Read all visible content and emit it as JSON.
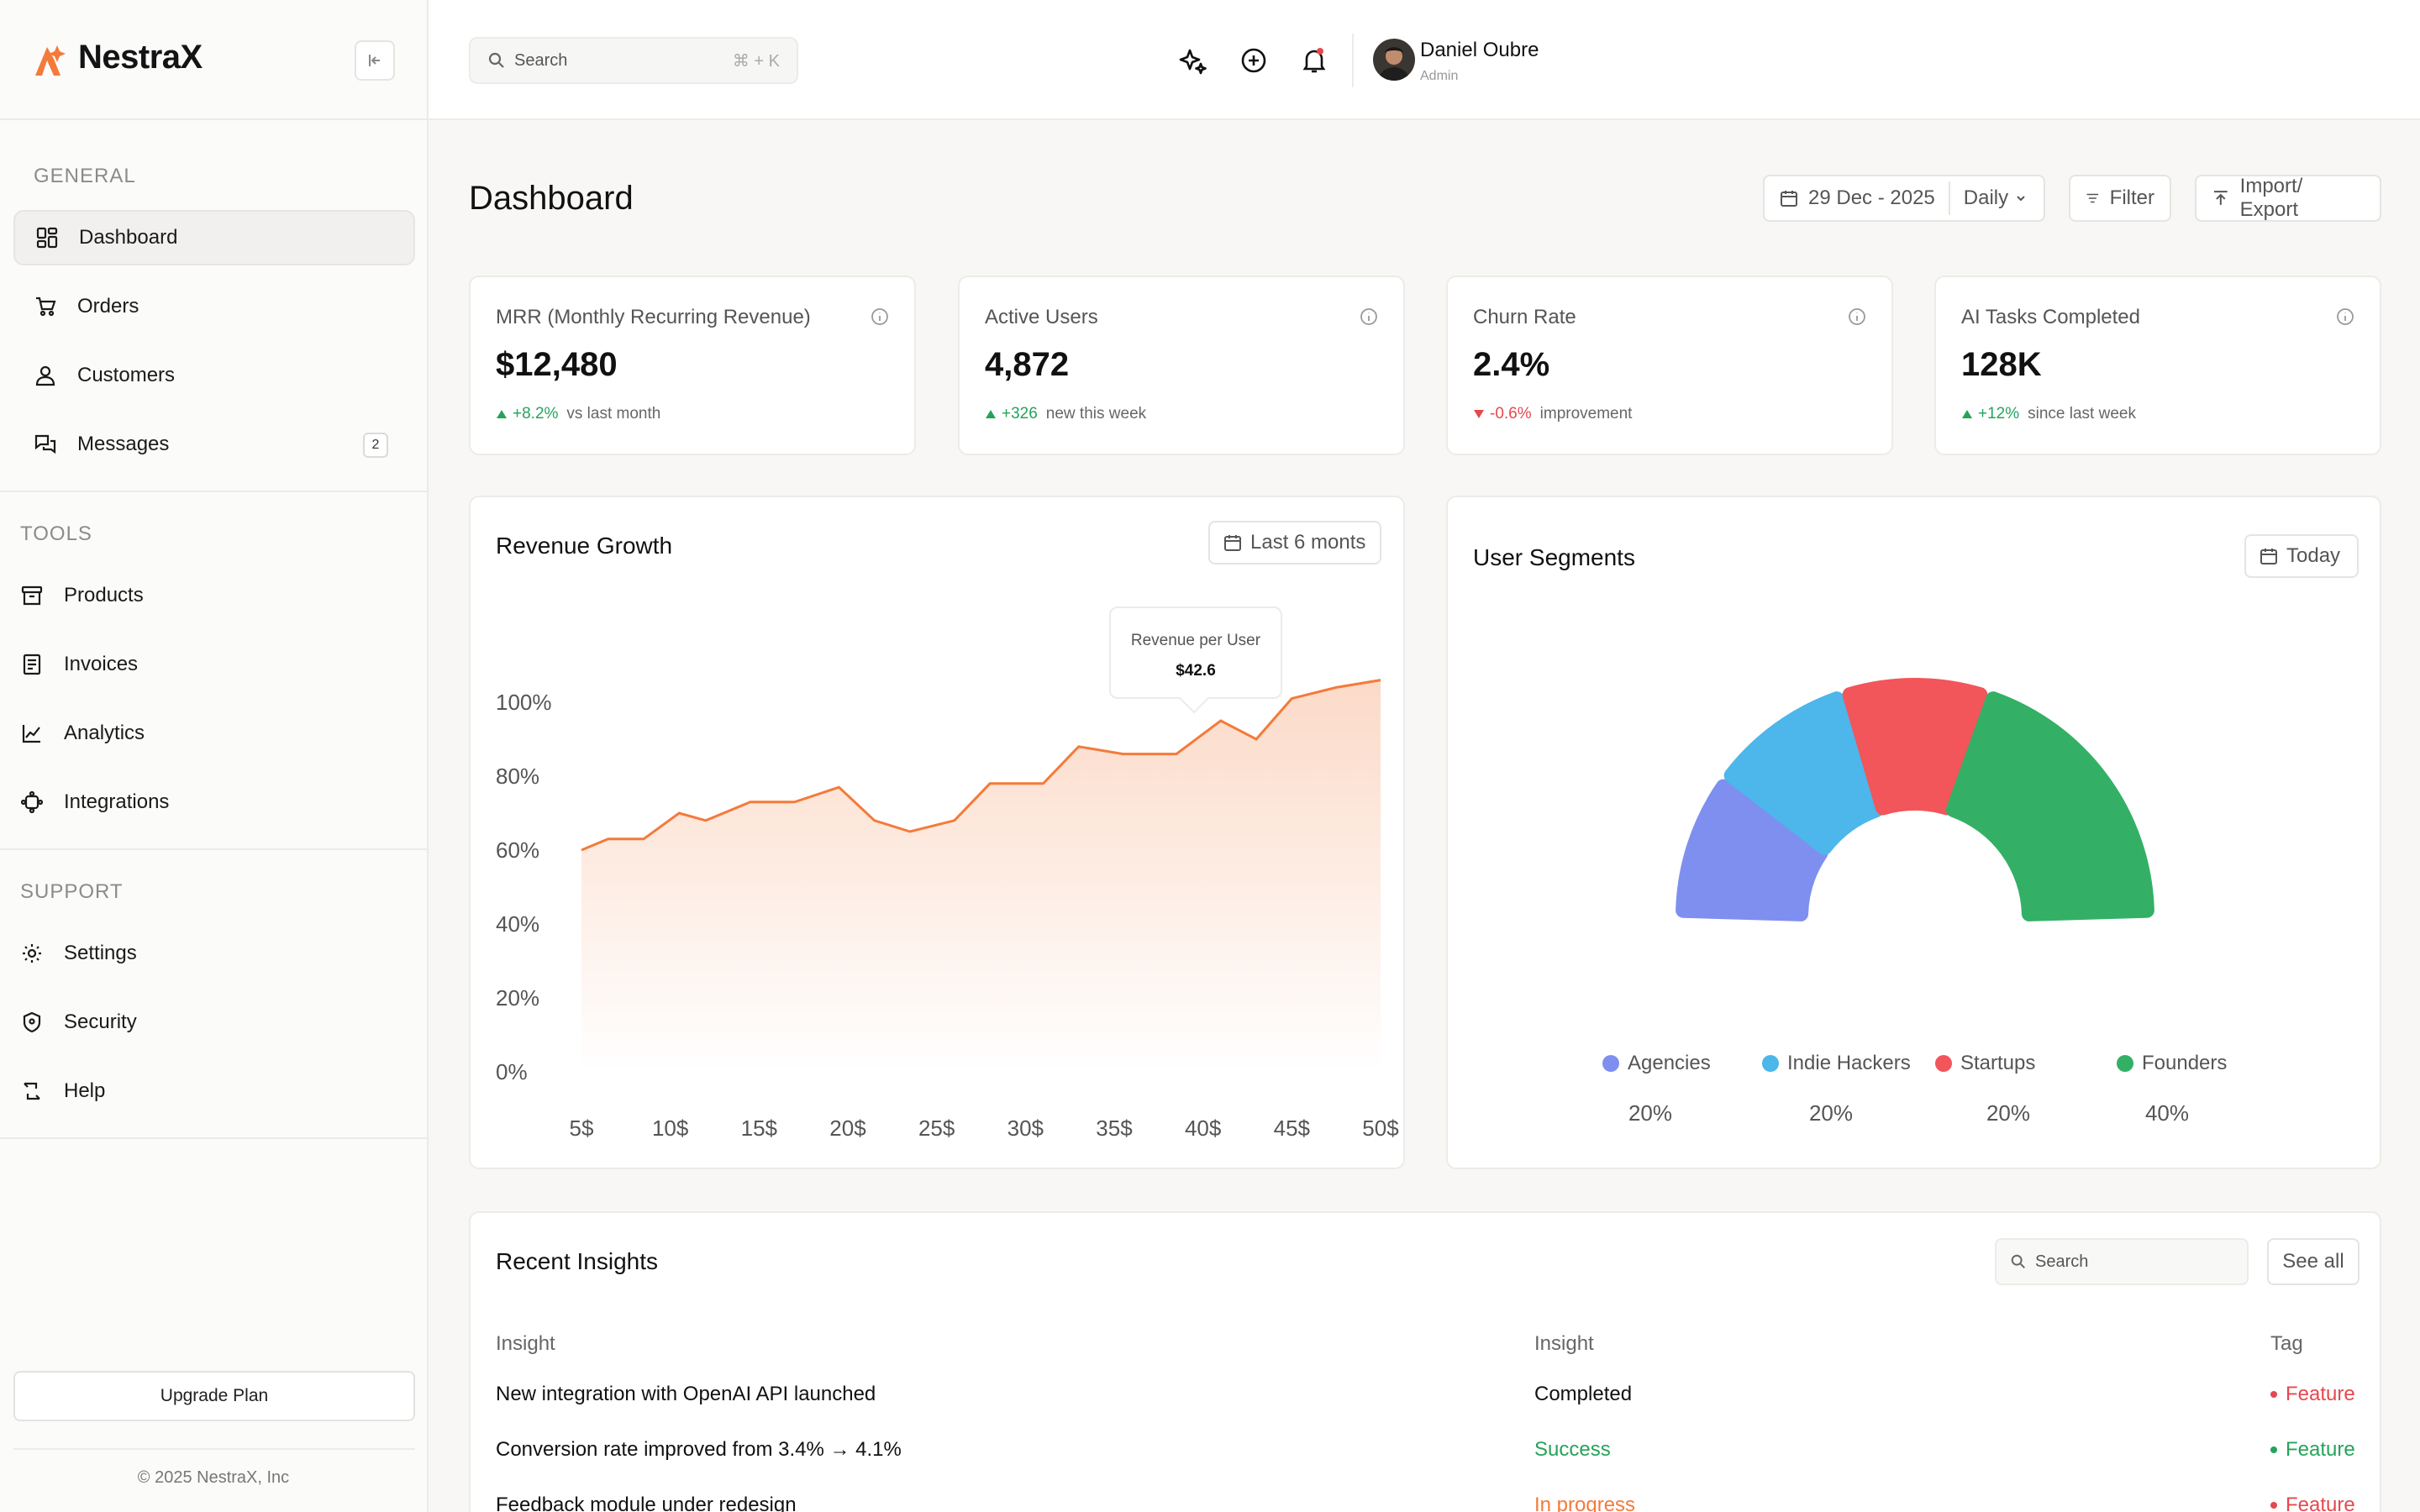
{
  "brand": {
    "name": "NestraX",
    "accent": "#f47a3a"
  },
  "sidebar": {
    "general_label": "GENERAL",
    "tools_label": "TOOLS",
    "support_label": "SUPPORT",
    "general": [
      {
        "label": "Dashboard",
        "icon": "dashboard-grid-icon",
        "active": true
      },
      {
        "label": "Orders",
        "icon": "cart-icon"
      },
      {
        "label": "Customers",
        "icon": "user-icon"
      },
      {
        "label": "Messages",
        "icon": "chat-icon",
        "badge": "2"
      }
    ],
    "tools": [
      {
        "label": "Products",
        "icon": "box-icon"
      },
      {
        "label": "Invoices",
        "icon": "invoice-icon"
      },
      {
        "label": "Analytics",
        "icon": "analytics-chart-icon"
      },
      {
        "label": "Integrations",
        "icon": "integrations-icon"
      }
    ],
    "support": [
      {
        "label": "Settings",
        "icon": "gear-icon"
      },
      {
        "label": "Security",
        "icon": "shield-icon"
      },
      {
        "label": "Help",
        "icon": "help-icon"
      }
    ],
    "upgrade_label": "Upgrade Plan",
    "copyright": "© 2025 NestraX, Inc"
  },
  "topbar": {
    "search_placeholder": "Search",
    "search_shortcut": "⌘ + K",
    "user_name": "Daniel Oubre",
    "user_role": "Admin"
  },
  "page": {
    "title": "Dashboard",
    "date_label": "29 Dec - 2025",
    "period_label": "Daily",
    "filter_label": "Filter",
    "import_export_label": "Import/ Export"
  },
  "kpis": [
    {
      "label": "MRR (Monthly Recurring Revenue)",
      "value": "$12,480",
      "delta": "+8.2%",
      "note": "vs last month",
      "trend": "up"
    },
    {
      "label": "Active Users",
      "value": "4,872",
      "delta": "+326",
      "note": "new this week",
      "trend": "up"
    },
    {
      "label": "Churn Rate",
      "value": "2.4%",
      "delta": "-0.6%",
      "note": "improvement",
      "trend": "down"
    },
    {
      "label": "AI Tasks Completed",
      "value": "128K",
      "delta": "+12%",
      "note": "since last week",
      "trend": "up"
    }
  ],
  "revenue": {
    "title": "Revenue Growth",
    "range_label": "Last 6 monts",
    "tooltip_label": "Revenue per User",
    "tooltip_value": "$42.6"
  },
  "segments": {
    "title": "User Segments",
    "range_label": "Today"
  },
  "chart_data": [
    {
      "type": "area",
      "title": "Revenue Growth",
      "x_ticks": [
        "5$",
        "10$",
        "15$",
        "20$",
        "25$",
        "30$",
        "35$",
        "40$",
        "45$",
        "50$"
      ],
      "y_ticks": [
        "100%",
        "80%",
        "60%",
        "40%",
        "20%",
        "0%"
      ],
      "ylim": [
        0,
        100
      ],
      "xlim": [
        5,
        50
      ],
      "x": [
        5,
        6.5,
        8.5,
        10.5,
        12,
        14.5,
        17,
        19.5,
        21.5,
        23.5,
        26,
        28,
        31,
        33,
        35.5,
        38.5,
        41,
        43,
        45,
        47.5,
        50
      ],
      "y": [
        60,
        63,
        63,
        70,
        68,
        73,
        73,
        77,
        68,
        65,
        68,
        78,
        78,
        88,
        86,
        86,
        95,
        90,
        101,
        104,
        106
      ],
      "grid": false,
      "color": "#f47a3a"
    },
    {
      "type": "pie",
      "title": "User Segments",
      "categories": [
        "Agencies",
        "Indie Hackers",
        "Startups",
        "Founders"
      ],
      "values": [
        20,
        20,
        20,
        40
      ],
      "labels": [
        "20%",
        "20%",
        "20%",
        "40%"
      ],
      "colors": [
        "#7f8ff0",
        "#4db6ea",
        "#f2555a",
        "#33b066"
      ],
      "legend": "bottom"
    }
  ],
  "insights": {
    "title": "Recent Insights",
    "search_placeholder": "Search",
    "see_all": "See all",
    "columns": [
      "Insight",
      "Insight",
      "Tag"
    ],
    "rows": [
      {
        "insight": "New integration with OpenAI API launched",
        "status": "Completed",
        "status_color": "#111111",
        "tag": "Feature",
        "tag_color": "#e5484d"
      },
      {
        "insight": "Conversion rate improved from 3.4% → 4.1%",
        "status": "Success",
        "status_color": "#25a35a",
        "tag": "Feature",
        "tag_color": "#25a35a"
      },
      {
        "insight": "Feedback module under redesign",
        "status": "In progress",
        "status_color": "#f47a3a",
        "tag": "Feature",
        "tag_color": "#e5484d"
      }
    ]
  }
}
